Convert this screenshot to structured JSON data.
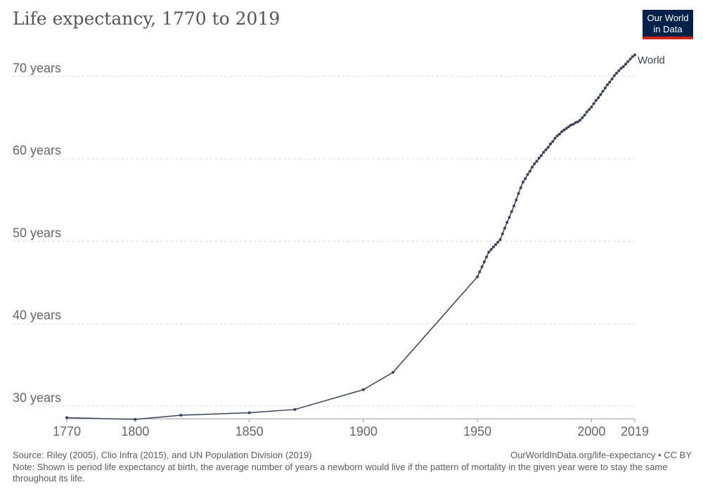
{
  "title": "Life expectancy, 1770 to 2019",
  "logo": {
    "line1": "Our World",
    "line2": "in Data"
  },
  "source": "Source: Riley (2005), Clio Infra (2015), and UN Population Division (2019)",
  "credit": "OurWorldInData.org/life-expectancy • CC BY",
  "note": "Note: Shown is period life expectancy at birth, the average number of years a newborn would live if the pattern of mortality in the given year were to stay the same throughout its life.",
  "colors": {
    "series": "#3b4257",
    "grid": "#dddddd",
    "logo_bg": "#002147",
    "logo_bar": "#ce261e"
  },
  "chart_data": {
    "type": "line",
    "title": "Life expectancy, 1770 to 2019",
    "xlabel": "",
    "ylabel": "",
    "xlim": [
      1770,
      2019
    ],
    "ylim": [
      28.5,
      73
    ],
    "grid": "horizontal dashed",
    "x_ticks": [
      "1770",
      "1800",
      "1850",
      "1900",
      "1950",
      "2000",
      "2019"
    ],
    "y_ticks": [
      {
        "value": 30,
        "label": "30 years"
      },
      {
        "value": 40,
        "label": "40 years"
      },
      {
        "value": 50,
        "label": "50 years"
      },
      {
        "value": 60,
        "label": "60 years"
      },
      {
        "value": 70,
        "label": "70 years"
      }
    ],
    "series": [
      {
        "name": "World",
        "x": [
          1770,
          1800,
          1820,
          1850,
          1870,
          1900,
          1913,
          1950,
          1951,
          1952,
          1953,
          1954,
          1955,
          1956,
          1957,
          1958,
          1959,
          1960,
          1961,
          1962,
          1963,
          1964,
          1965,
          1966,
          1967,
          1968,
          1969,
          1970,
          1971,
          1972,
          1973,
          1974,
          1975,
          1976,
          1977,
          1978,
          1979,
          1980,
          1981,
          1982,
          1983,
          1984,
          1985,
          1986,
          1987,
          1988,
          1989,
          1990,
          1991,
          1992,
          1993,
          1994,
          1995,
          1996,
          1997,
          1998,
          1999,
          2000,
          2001,
          2002,
          2003,
          2004,
          2005,
          2006,
          2007,
          2008,
          2009,
          2010,
          2011,
          2012,
          2013,
          2014,
          2015,
          2016,
          2017,
          2018,
          2019
        ],
        "y": [
          28.6,
          28.4,
          28.9,
          29.2,
          29.6,
          32.0,
          34.1,
          45.7,
          46.3,
          46.9,
          47.5,
          48.1,
          48.7,
          49.0,
          49.3,
          49.6,
          49.9,
          50.2,
          50.9,
          51.6,
          52.3,
          52.9,
          53.6,
          54.3,
          55.0,
          55.8,
          56.5,
          57.2,
          57.6,
          58.1,
          58.5,
          59.0,
          59.4,
          59.7,
          60.1,
          60.4,
          60.8,
          61.1,
          61.4,
          61.8,
          62.1,
          62.5,
          62.8,
          63.0,
          63.3,
          63.5,
          63.7,
          63.9,
          64.1,
          64.2,
          64.4,
          64.5,
          64.7,
          65.0,
          65.3,
          65.7,
          66.0,
          66.3,
          66.7,
          67.1,
          67.4,
          67.8,
          68.2,
          68.6,
          69.0,
          69.3,
          69.7,
          70.1,
          70.4,
          70.7,
          71.0,
          71.2,
          71.5,
          71.8,
          72.1,
          72.4,
          72.6
        ]
      }
    ]
  }
}
